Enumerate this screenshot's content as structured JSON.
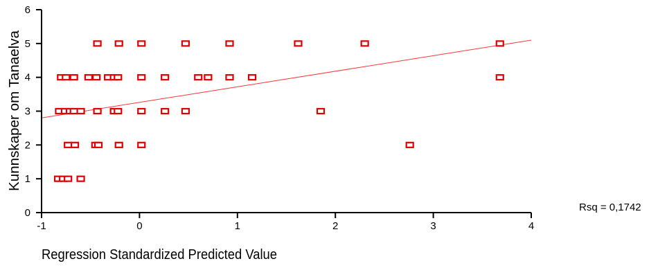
{
  "chart_data": {
    "type": "scatter",
    "xlabel": "Regression Standardized Predicted Value",
    "ylabel": "Kunnskaper om Tanaelva",
    "xlim": [
      -1,
      4
    ],
    "ylim": [
      0,
      6
    ],
    "xticks": [
      "-1",
      "0",
      "1",
      "2",
      "3",
      "4"
    ],
    "yticks": [
      "0",
      "1",
      "2",
      "3",
      "4",
      "5",
      "6"
    ],
    "annotation": "Rsq = 0,1742",
    "colors": {
      "points": "#e00000",
      "fit_line": "#ff3333",
      "axes": "#000000"
    },
    "fit_line": {
      "x": [
        -1,
        4
      ],
      "y": [
        2.8,
        5.1
      ]
    },
    "points": [
      {
        "x": -0.83,
        "y": 1
      },
      {
        "x": -0.78,
        "y": 1
      },
      {
        "x": -0.73,
        "y": 1
      },
      {
        "x": -0.6,
        "y": 1
      },
      {
        "x": -0.73,
        "y": 2
      },
      {
        "x": -0.66,
        "y": 2
      },
      {
        "x": -0.45,
        "y": 2
      },
      {
        "x": -0.42,
        "y": 2
      },
      {
        "x": -0.21,
        "y": 2
      },
      {
        "x": 0.02,
        "y": 2
      },
      {
        "x": 2.76,
        "y": 2
      },
      {
        "x": -0.82,
        "y": 3
      },
      {
        "x": -0.76,
        "y": 3
      },
      {
        "x": -0.71,
        "y": 3
      },
      {
        "x": -0.67,
        "y": 3
      },
      {
        "x": -0.6,
        "y": 3
      },
      {
        "x": -0.43,
        "y": 3
      },
      {
        "x": -0.26,
        "y": 3
      },
      {
        "x": -0.22,
        "y": 3
      },
      {
        "x": 0.02,
        "y": 3
      },
      {
        "x": 0.26,
        "y": 3
      },
      {
        "x": 0.47,
        "y": 3
      },
      {
        "x": 1.85,
        "y": 3
      },
      {
        "x": -0.8,
        "y": 4
      },
      {
        "x": -0.75,
        "y": 4
      },
      {
        "x": -0.67,
        "y": 4
      },
      {
        "x": -0.52,
        "y": 4
      },
      {
        "x": -0.44,
        "y": 4
      },
      {
        "x": -0.32,
        "y": 4
      },
      {
        "x": -0.26,
        "y": 4
      },
      {
        "x": -0.22,
        "y": 4
      },
      {
        "x": 0.02,
        "y": 4
      },
      {
        "x": 0.26,
        "y": 4
      },
      {
        "x": 0.6,
        "y": 4
      },
      {
        "x": 0.7,
        "y": 4
      },
      {
        "x": 0.92,
        "y": 4
      },
      {
        "x": 1.15,
        "y": 4
      },
      {
        "x": 3.68,
        "y": 4
      },
      {
        "x": -0.43,
        "y": 5
      },
      {
        "x": -0.21,
        "y": 5
      },
      {
        "x": 0.02,
        "y": 5
      },
      {
        "x": 0.47,
        "y": 5
      },
      {
        "x": 0.92,
        "y": 5
      },
      {
        "x": 1.62,
        "y": 5
      },
      {
        "x": 2.3,
        "y": 5
      },
      {
        "x": 3.68,
        "y": 5
      }
    ]
  }
}
